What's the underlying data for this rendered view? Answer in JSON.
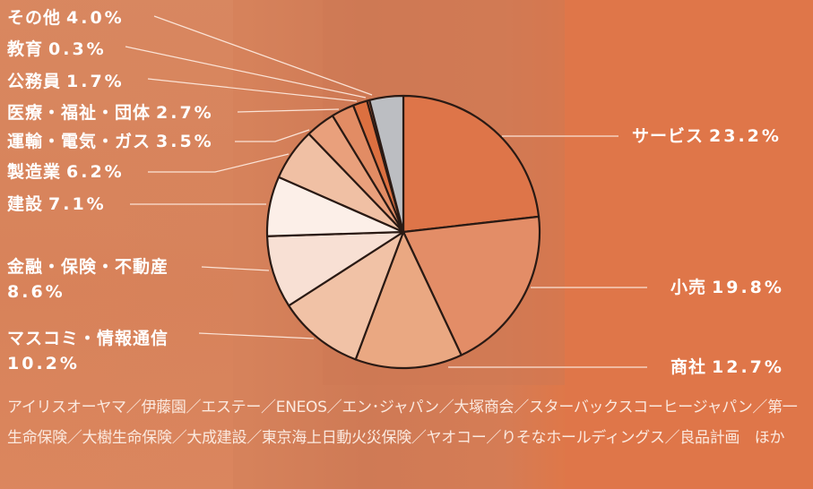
{
  "chart_data": {
    "type": "pie",
    "start": "top",
    "direction": "clockwise",
    "slices": [
      {
        "label": "サービス",
        "value": 23.2,
        "display": "23.2%",
        "color": "#de7549"
      },
      {
        "label": "小売",
        "value": 19.8,
        "display": "19.8%",
        "color": "#e38d67"
      },
      {
        "label": "商社",
        "value": 12.7,
        "display": "12.7%",
        "color": "#eaa882"
      },
      {
        "label": "マスコミ・情報通信",
        "value": 10.2,
        "display": "10.2%",
        "color": "#f1c2a6"
      },
      {
        "label": "金融・保険・不動産",
        "value": 8.6,
        "display": "8.6%",
        "color": "#f8e0d4"
      },
      {
        "label": "建設",
        "value": 7.1,
        "display": "7.1%",
        "color": "#fcefe8"
      },
      {
        "label": "製造業",
        "value": 6.2,
        "display": "6.2%",
        "color": "#f0c0a4"
      },
      {
        "label": "運輸・電気・ガス",
        "value": 3.5,
        "display": "3.5%",
        "color": "#e9a07c"
      },
      {
        "label": "医療・福祉・団体",
        "value": 2.7,
        "display": "2.7%",
        "color": "#e28c64"
      },
      {
        "label": "公務員",
        "value": 1.7,
        "display": "1.7%",
        "color": "#dc7040"
      },
      {
        "label": "教育",
        "value": 0.3,
        "display": "0.3%",
        "color": "#c86a45"
      },
      {
        "label": "その他",
        "value": 4.0,
        "display": "4.0%",
        "color": "#bcbec2"
      }
    ]
  },
  "companies": "アイリスオーヤマ／伊藤園／エステー／ENEOS／エン･ジャパン／大塚商会／スターバックスコーヒージャパン／第一生命保険／大樹生命保険／大成建設／東京海上日動火災保険／ヤオコー／りそなホールディングス／良品計画　ほか"
}
